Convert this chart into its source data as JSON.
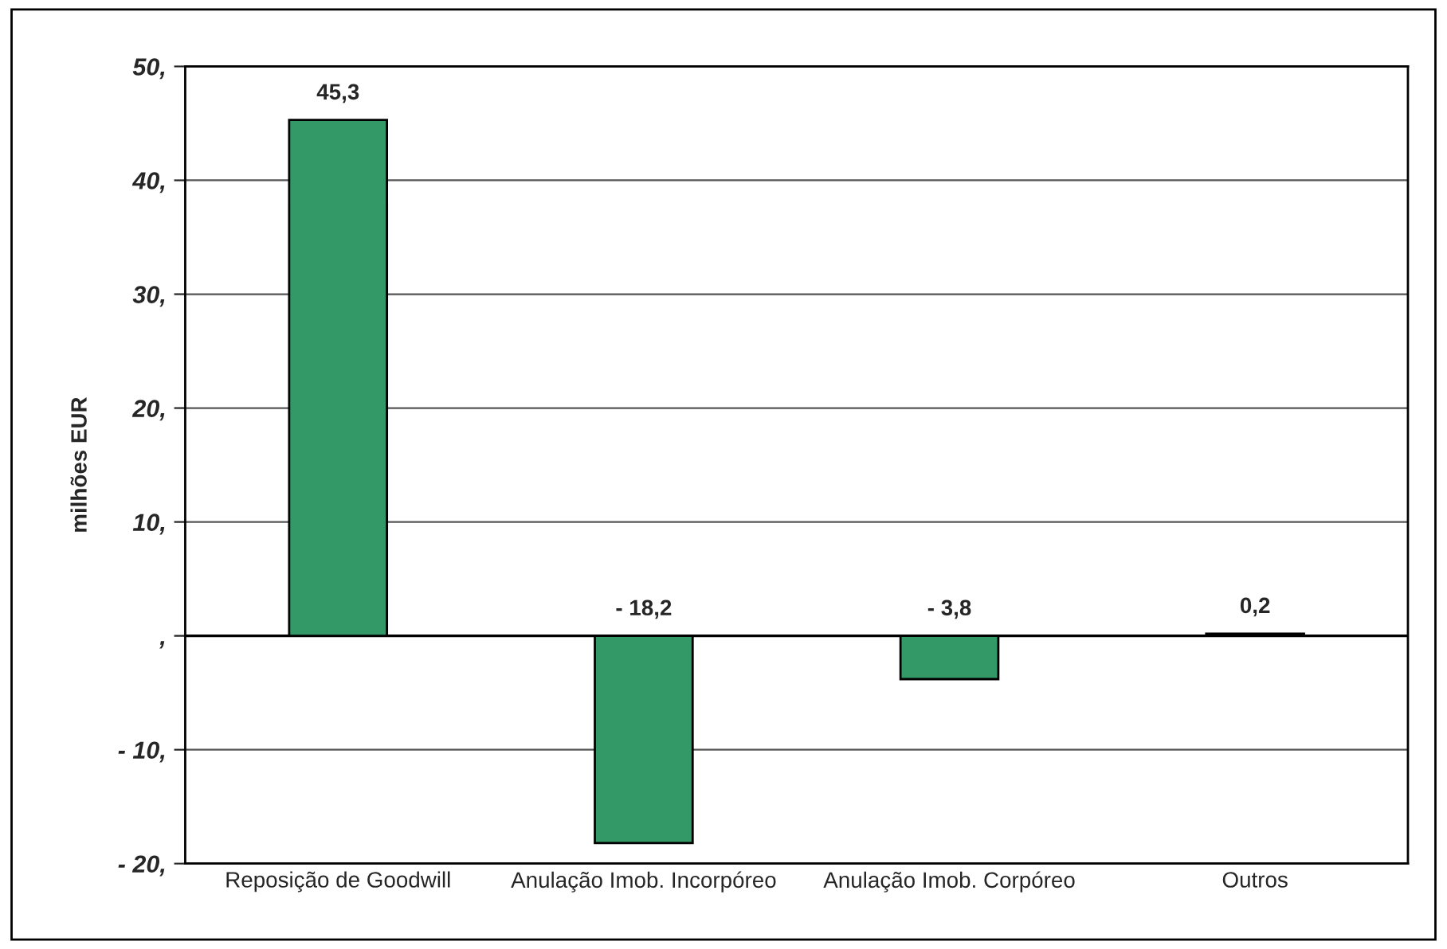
{
  "chart_data": {
    "type": "bar",
    "ylabel": "milhões EUR",
    "categories": [
      "Reposição de Goodwill",
      "Anulação Imob. Incorpóreo",
      "Anulação Imob. Corpóreo",
      "Outros"
    ],
    "values": [
      45.3,
      -18.2,
      -3.8,
      0.2
    ],
    "value_labels": [
      "45,3",
      "- 18,2",
      "- 3,8",
      "0,2"
    ],
    "color": "#339966",
    "ylim": [
      -20,
      50
    ],
    "yticks": [
      {
        "value": -20,
        "label": "- 20,"
      },
      {
        "value": -10,
        "label": "- 10,"
      },
      {
        "value": 0,
        "label": ","
      },
      {
        "value": 10,
        "label": "10,"
      },
      {
        "value": 20,
        "label": "20,"
      },
      {
        "value": 30,
        "label": "30,"
      },
      {
        "value": 40,
        "label": "40,"
      },
      {
        "value": 50,
        "label": "50,"
      }
    ],
    "grid": "y"
  }
}
